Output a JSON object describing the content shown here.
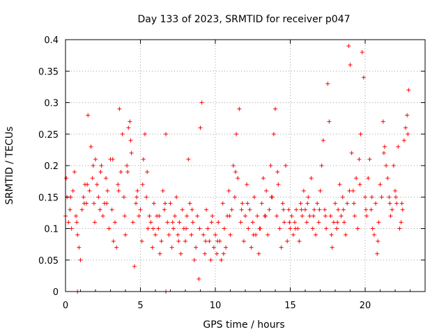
{
  "chart_data": {
    "type": "scatter",
    "title": "Day 133 of 2023, SRMTID for receiver p047",
    "xlabel": "GPS time / hours",
    "ylabel": "SRMTID / TECUs",
    "xlim": [
      0,
      24
    ],
    "ylim": [
      0,
      0.4
    ],
    "x_ticks": [
      0,
      5,
      10,
      15,
      20
    ],
    "x_tick_labels": [
      "0",
      "5",
      "10",
      "15",
      "20"
    ],
    "y_ticks": [
      0,
      0.05,
      0.1,
      0.15,
      0.2,
      0.25,
      0.3,
      0.35,
      0.4
    ],
    "y_tick_labels": [
      "0",
      "0.05",
      "0.1",
      "0.15",
      "0.2",
      "0.25",
      "0.3",
      "0.35",
      "0.4"
    ],
    "grid": true,
    "marker": "plus",
    "series": [
      {
        "name": "SRMTID",
        "color": "#ff0000",
        "points": [
          [
            0.0,
            0.12
          ],
          [
            0.1,
            0.15
          ],
          [
            0.2,
            0.11
          ],
          [
            0.3,
            0.13
          ],
          [
            0.4,
            0.1
          ],
          [
            0.5,
            0.16
          ],
          [
            0.6,
            0.19
          ],
          [
            0.7,
            0.12
          ],
          [
            0.8,
            0.09
          ],
          [
            0.9,
            0.07
          ],
          [
            1.0,
            0.05
          ],
          [
            1.1,
            0.13
          ],
          [
            1.2,
            0.15
          ],
          [
            1.3,
            0.17
          ],
          [
            1.4,
            0.14
          ],
          [
            1.5,
            0.28
          ],
          [
            1.6,
            0.16
          ],
          [
            1.7,
            0.23
          ],
          [
            1.8,
            0.18
          ],
          [
            1.9,
            0.14
          ],
          [
            2.0,
            0.21
          ],
          [
            2.1,
            0.17
          ],
          [
            2.2,
            0.15
          ],
          [
            2.3,
            0.13
          ],
          [
            2.4,
            0.2
          ],
          [
            2.5,
            0.12
          ],
          [
            2.6,
            0.14
          ],
          [
            2.7,
            0.18
          ],
          [
            2.8,
            0.16
          ],
          [
            2.9,
            0.1
          ],
          [
            3.0,
            0.21
          ],
          [
            3.1,
            0.13
          ],
          [
            3.2,
            0.08
          ],
          [
            3.3,
            0.11
          ],
          [
            3.4,
            0.07
          ],
          [
            3.5,
            0.17
          ],
          [
            3.6,
            0.29
          ],
          [
            3.7,
            0.19
          ],
          [
            3.8,
            0.25
          ],
          [
            3.9,
            0.15
          ],
          [
            4.0,
            0.09
          ],
          [
            4.1,
            0.2
          ],
          [
            4.2,
            0.26
          ],
          [
            4.3,
            0.27
          ],
          [
            4.4,
            0.22
          ],
          [
            4.5,
            0.11
          ],
          [
            4.6,
            0.04
          ],
          [
            4.7,
            0.14
          ],
          [
            4.8,
            0.16
          ],
          [
            4.9,
            0.12
          ],
          [
            5.0,
            0.13
          ],
          [
            5.1,
            0.08
          ],
          [
            5.2,
            0.21
          ],
          [
            5.3,
            0.25
          ],
          [
            5.4,
            0.15
          ],
          [
            5.5,
            0.1
          ],
          [
            5.6,
            0.12
          ],
          [
            5.7,
            0.11
          ],
          [
            5.8,
            0.07
          ],
          [
            5.9,
            0.14
          ],
          [
            6.0,
            0.09
          ],
          [
            6.1,
            0.12
          ],
          [
            6.2,
            0.1
          ],
          [
            6.3,
            0.06
          ],
          [
            6.4,
            0.08
          ],
          [
            6.5,
            0.16
          ],
          [
            6.6,
            0.13
          ],
          [
            6.7,
            0.25
          ],
          [
            6.8,
            0.11
          ],
          [
            6.9,
            0.09
          ],
          [
            7.0,
            0.14
          ],
          [
            7.1,
            0.07
          ],
          [
            7.2,
            0.1
          ],
          [
            7.3,
            0.12
          ],
          [
            7.4,
            0.15
          ],
          [
            7.5,
            0.09
          ],
          [
            7.6,
            0.11
          ],
          [
            7.7,
            0.06
          ],
          [
            7.8,
            0.13
          ],
          [
            7.9,
            0.1
          ],
          [
            8.0,
            0.08
          ],
          [
            8.1,
            0.12
          ],
          [
            8.2,
            0.21
          ],
          [
            8.3,
            0.14
          ],
          [
            8.4,
            0.09
          ],
          [
            8.5,
            0.11
          ],
          [
            8.6,
            0.05
          ],
          [
            8.7,
            0.07
          ],
          [
            8.8,
            0.12
          ],
          [
            8.9,
            0.02
          ],
          [
            9.0,
            0.26
          ],
          [
            9.1,
            0.3
          ],
          [
            9.2,
            0.09
          ],
          [
            9.3,
            0.06
          ],
          [
            9.4,
            0.13
          ],
          [
            9.5,
            0.1
          ],
          [
            9.6,
            0.08
          ],
          [
            9.7,
            0.05
          ],
          [
            9.8,
            0.12
          ],
          [
            9.9,
            0.07
          ],
          [
            10.0,
            0.09
          ],
          [
            10.1,
            0.06
          ],
          [
            10.2,
            0.11
          ],
          [
            10.3,
            0.08
          ],
          [
            10.4,
            0.05
          ],
          [
            10.5,
            0.14
          ],
          [
            10.6,
            0.1
          ],
          [
            10.7,
            0.07
          ],
          [
            10.8,
            0.12
          ],
          [
            10.9,
            0.16
          ],
          [
            11.0,
            0.09
          ],
          [
            11.1,
            0.13
          ],
          [
            11.2,
            0.2
          ],
          [
            11.3,
            0.15
          ],
          [
            11.4,
            0.25
          ],
          [
            11.5,
            0.18
          ],
          [
            11.6,
            0.29
          ],
          [
            11.7,
            0.11
          ],
          [
            11.8,
            0.14
          ],
          [
            11.9,
            0.08
          ],
          [
            12.0,
            0.12
          ],
          [
            12.1,
            0.17
          ],
          [
            12.2,
            0.1
          ],
          [
            12.3,
            0.13
          ],
          [
            12.4,
            0.07
          ],
          [
            12.5,
            0.11
          ],
          [
            12.6,
            0.15
          ],
          [
            12.7,
            0.09
          ],
          [
            12.8,
            0.12
          ],
          [
            12.9,
            0.06
          ],
          [
            13.0,
            0.1
          ],
          [
            13.1,
            0.14
          ],
          [
            13.2,
            0.18
          ],
          [
            13.3,
            0.12
          ],
          [
            13.4,
            0.16
          ],
          [
            13.5,
            0.09
          ],
          [
            13.6,
            0.13
          ],
          [
            13.7,
            0.2
          ],
          [
            13.8,
            0.15
          ],
          [
            13.9,
            0.25
          ],
          [
            14.0,
            0.29
          ],
          [
            14.1,
            0.12
          ],
          [
            14.2,
            0.17
          ],
          [
            14.3,
            0.1
          ],
          [
            14.4,
            0.07
          ],
          [
            14.5,
            0.14
          ],
          [
            14.6,
            0.11
          ],
          [
            14.7,
            0.2
          ],
          [
            14.8,
            0.08
          ],
          [
            14.9,
            0.13
          ],
          [
            15.0,
            0.1
          ],
          [
            15.1,
            0.12
          ],
          [
            15.2,
            0.09
          ],
          [
            15.3,
            0.11
          ],
          [
            15.4,
            0.13
          ],
          [
            15.5,
            0.1
          ],
          [
            15.6,
            0.08
          ],
          [
            15.7,
            0.14
          ],
          [
            15.8,
            0.12
          ],
          [
            15.9,
            0.16
          ],
          [
            16.0,
            0.13
          ],
          [
            16.1,
            0.11
          ],
          [
            16.2,
            0.15
          ],
          [
            16.3,
            0.12
          ],
          [
            16.4,
            0.18
          ],
          [
            16.5,
            0.1
          ],
          [
            16.6,
            0.13
          ],
          [
            16.7,
            0.09
          ],
          [
            16.8,
            0.14
          ],
          [
            16.9,
            0.11
          ],
          [
            17.0,
            0.16
          ],
          [
            17.1,
            0.2
          ],
          [
            17.2,
            0.24
          ],
          [
            17.3,
            0.13
          ],
          [
            17.4,
            0.1
          ],
          [
            17.5,
            0.33
          ],
          [
            17.6,
            0.27
          ],
          [
            17.7,
            0.12
          ],
          [
            17.8,
            0.07
          ],
          [
            17.9,
            0.11
          ],
          [
            18.0,
            0.14
          ],
          [
            18.1,
            0.1
          ],
          [
            18.2,
            0.13
          ],
          [
            18.3,
            0.17
          ],
          [
            18.4,
            0.12
          ],
          [
            18.5,
            0.15
          ],
          [
            18.6,
            0.11
          ],
          [
            18.7,
            0.09
          ],
          [
            18.8,
            0.14
          ],
          [
            18.9,
            0.39
          ],
          [
            19.0,
            0.36
          ],
          [
            19.1,
            0.22
          ],
          [
            19.2,
            0.16
          ],
          [
            19.3,
            0.12
          ],
          [
            19.4,
            0.18
          ],
          [
            19.5,
            0.1
          ],
          [
            19.6,
            0.21
          ],
          [
            19.7,
            0.25
          ],
          [
            19.8,
            0.38
          ],
          [
            19.9,
            0.34
          ],
          [
            20.0,
            0.15
          ],
          [
            20.1,
            0.12
          ],
          [
            20.2,
            0.18
          ],
          [
            20.3,
            0.21
          ],
          [
            20.4,
            0.13
          ],
          [
            20.5,
            0.1
          ],
          [
            20.6,
            0.09
          ],
          [
            20.7,
            0.14
          ],
          [
            20.8,
            0.06
          ],
          [
            20.9,
            0.11
          ],
          [
            21.0,
            0.17
          ],
          [
            21.1,
            0.15
          ],
          [
            21.2,
            0.27
          ],
          [
            21.3,
            0.23
          ],
          [
            21.4,
            0.2
          ],
          [
            21.5,
            0.18
          ],
          [
            21.6,
            0.15
          ],
          [
            21.7,
            0.12
          ],
          [
            21.8,
            0.13
          ],
          [
            21.9,
            0.2
          ],
          [
            22.0,
            0.16
          ],
          [
            22.1,
            0.14
          ],
          [
            22.2,
            0.23
          ],
          [
            22.3,
            0.1
          ],
          [
            22.4,
            0.11
          ],
          [
            22.5,
            0.13
          ],
          [
            22.6,
            0.24
          ],
          [
            22.7,
            0.26
          ],
          [
            22.8,
            0.28
          ],
          [
            22.9,
            0.32
          ],
          [
            0.05,
            0.18
          ],
          [
            0.35,
            0.15
          ],
          [
            0.75,
            0.11
          ],
          [
            1.25,
            0.14
          ],
          [
            1.45,
            0.17
          ],
          [
            1.85,
            0.2
          ],
          [
            2.35,
            0.19
          ],
          [
            2.75,
            0.14
          ],
          [
            3.15,
            0.21
          ],
          [
            3.55,
            0.16
          ],
          [
            3.95,
            0.12
          ],
          [
            4.15,
            0.19
          ],
          [
            4.35,
            0.24
          ],
          [
            4.75,
            0.15
          ],
          [
            5.15,
            0.17
          ],
          [
            5.45,
            0.19
          ],
          [
            5.85,
            0.1
          ],
          [
            6.25,
            0.12
          ],
          [
            6.65,
            0.14
          ],
          [
            7.15,
            0.11
          ],
          [
            7.55,
            0.08
          ],
          [
            8.05,
            0.1
          ],
          [
            8.45,
            0.13
          ],
          [
            8.95,
            0.1
          ],
          [
            9.35,
            0.08
          ],
          [
            9.75,
            0.11
          ],
          [
            10.15,
            0.08
          ],
          [
            10.55,
            0.06
          ],
          [
            10.95,
            0.12
          ],
          [
            11.35,
            0.19
          ],
          [
            11.75,
            0.13
          ],
          [
            12.15,
            0.14
          ],
          [
            12.55,
            0.09
          ],
          [
            12.95,
            0.1
          ],
          [
            13.35,
            0.12
          ],
          [
            13.75,
            0.15
          ],
          [
            14.15,
            0.19
          ],
          [
            14.55,
            0.13
          ],
          [
            14.95,
            0.11
          ],
          [
            15.35,
            0.1
          ],
          [
            15.75,
            0.13
          ],
          [
            16.15,
            0.14
          ],
          [
            16.55,
            0.12
          ],
          [
            16.95,
            0.13
          ],
          [
            17.35,
            0.12
          ],
          [
            17.75,
            0.09
          ],
          [
            18.15,
            0.11
          ],
          [
            18.55,
            0.13
          ],
          [
            18.95,
            0.16
          ],
          [
            19.25,
            0.14
          ],
          [
            19.65,
            0.17
          ],
          [
            20.05,
            0.13
          ],
          [
            20.45,
            0.15
          ],
          [
            20.85,
            0.08
          ],
          [
            21.25,
            0.22
          ],
          [
            21.65,
            0.14
          ],
          [
            22.05,
            0.15
          ],
          [
            22.45,
            0.14
          ],
          [
            22.85,
            0.25
          ],
          [
            1.95,
            0.11
          ],
          [
            0.8,
            0.0
          ],
          [
            6.7,
            0.0
          ]
        ]
      }
    ]
  }
}
